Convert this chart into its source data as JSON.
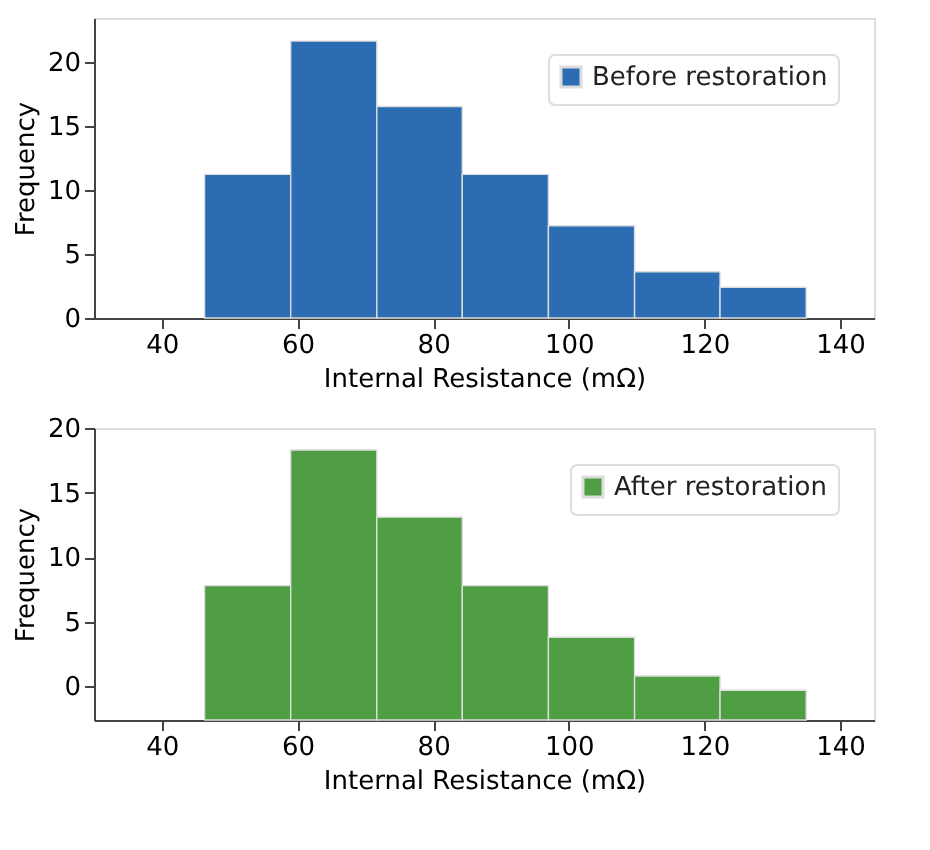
{
  "chart_data": [
    {
      "type": "histogram",
      "xlabel": "Internal Resistance (mΩ)",
      "ylabel": "Frequency",
      "bins": [
        46.3,
        59,
        71.7,
        84.3,
        97,
        109.7,
        122.3,
        135
      ],
      "series": [
        {
          "name": "Before restoration",
          "color": "#2b6cb3",
          "values": [
            11.2,
            21.6,
            16.5,
            11.2,
            7.2,
            3.6,
            2.4
          ]
        }
      ],
      "xlim": [
        30,
        145
      ],
      "xticks": [
        40,
        60,
        80,
        100,
        120,
        140
      ],
      "ylim": [
        0,
        23.4
      ],
      "yticks": [
        0,
        5,
        10,
        15,
        20
      ],
      "grid": false,
      "legend": "top right"
    },
    {
      "type": "histogram",
      "xlabel": "Internal Resistance (mΩ)",
      "ylabel": "Frequency",
      "bins": [
        46.3,
        59,
        71.7,
        84.3,
        97,
        109.7,
        122.3,
        135
      ],
      "series": [
        {
          "name": "After restoration",
          "color": "#4f9e43",
          "values": [
            10.4,
            20.9,
            15.7,
            10.4,
            6.4,
            3.4,
            2.3
          ],
          "base": [
            -2.6,
            -2.6,
            -2.6,
            -2.6,
            -2.6,
            -2.6,
            -2.6
          ]
        }
      ],
      "xlim": [
        30,
        145
      ],
      "xticks": [
        40,
        60,
        80,
        100,
        120,
        140
      ],
      "ylim": [
        -2.6,
        20
      ],
      "yticks": [
        0,
        5,
        10,
        15,
        20
      ],
      "grid": false,
      "legend": "top right"
    }
  ]
}
